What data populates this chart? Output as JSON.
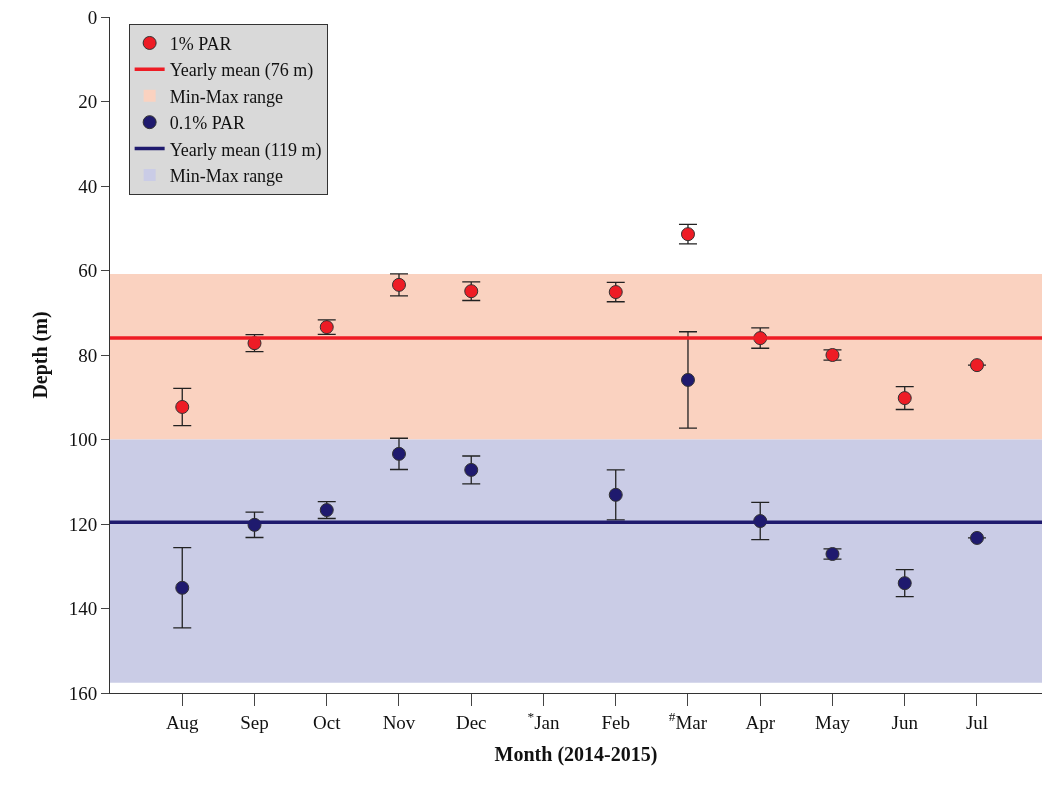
{
  "chart_data": {
    "type": "scatter",
    "xlabel": "Month (2014-2015)",
    "ylabel": "Depth (m)",
    "categories": [
      "Aug",
      "Sep",
      "Oct",
      "Nov",
      "Dec",
      "$^{*}$Jan",
      "Feb",
      "$^{#}$Mar",
      "Apr",
      "May",
      "Jun",
      "Jul"
    ],
    "series": [
      {
        "name": "1% PAR",
        "color": "#ee1c25",
        "values": [
          92.3,
          77.2,
          73.4,
          63.4,
          64.9,
          null,
          65.1,
          51.4,
          76.0,
          80.0,
          90.2,
          82.4
        ],
        "errors": [
          4.4,
          2.0,
          1.7,
          2.6,
          2.2,
          null,
          2.3,
          2.3,
          2.4,
          1.2,
          2.7,
          null
        ]
      },
      {
        "name": "0.1% PAR",
        "color": "#1f1a6e",
        "values": [
          135.1,
          120.2,
          116.7,
          103.4,
          107.2,
          null,
          113.1,
          85.9,
          119.3,
          127.1,
          134.0,
          123.3
        ],
        "errors": [
          9.5,
          3.0,
          2.0,
          3.7,
          3.3,
          null,
          5.9,
          11.4,
          4.4,
          1.2,
          3.2,
          null
        ]
      }
    ],
    "ref_lines": [
      {
        "axis": "y",
        "value": 76,
        "label": "Yearly mean (76 m)",
        "color": "#ee1c25"
      },
      {
        "axis": "y",
        "value": 119.6,
        "label": "Yearly mean (119 m)",
        "color": "#1f1a6e"
      }
    ],
    "bands": [
      {
        "axis": "y",
        "from": 60.8,
        "to": 100,
        "label": "Min-Max range",
        "color": "#fad2c0"
      },
      {
        "axis": "y",
        "from": 100,
        "to": 157.6,
        "label": "Min-Max range",
        "color": "#cacce6"
      }
    ],
    "ylim": [
      160,
      0
    ],
    "yticks": [
      0,
      20,
      40,
      60,
      80,
      100,
      120,
      140,
      160
    ],
    "marker": "circle",
    "grid": false,
    "legend": "top left"
  }
}
